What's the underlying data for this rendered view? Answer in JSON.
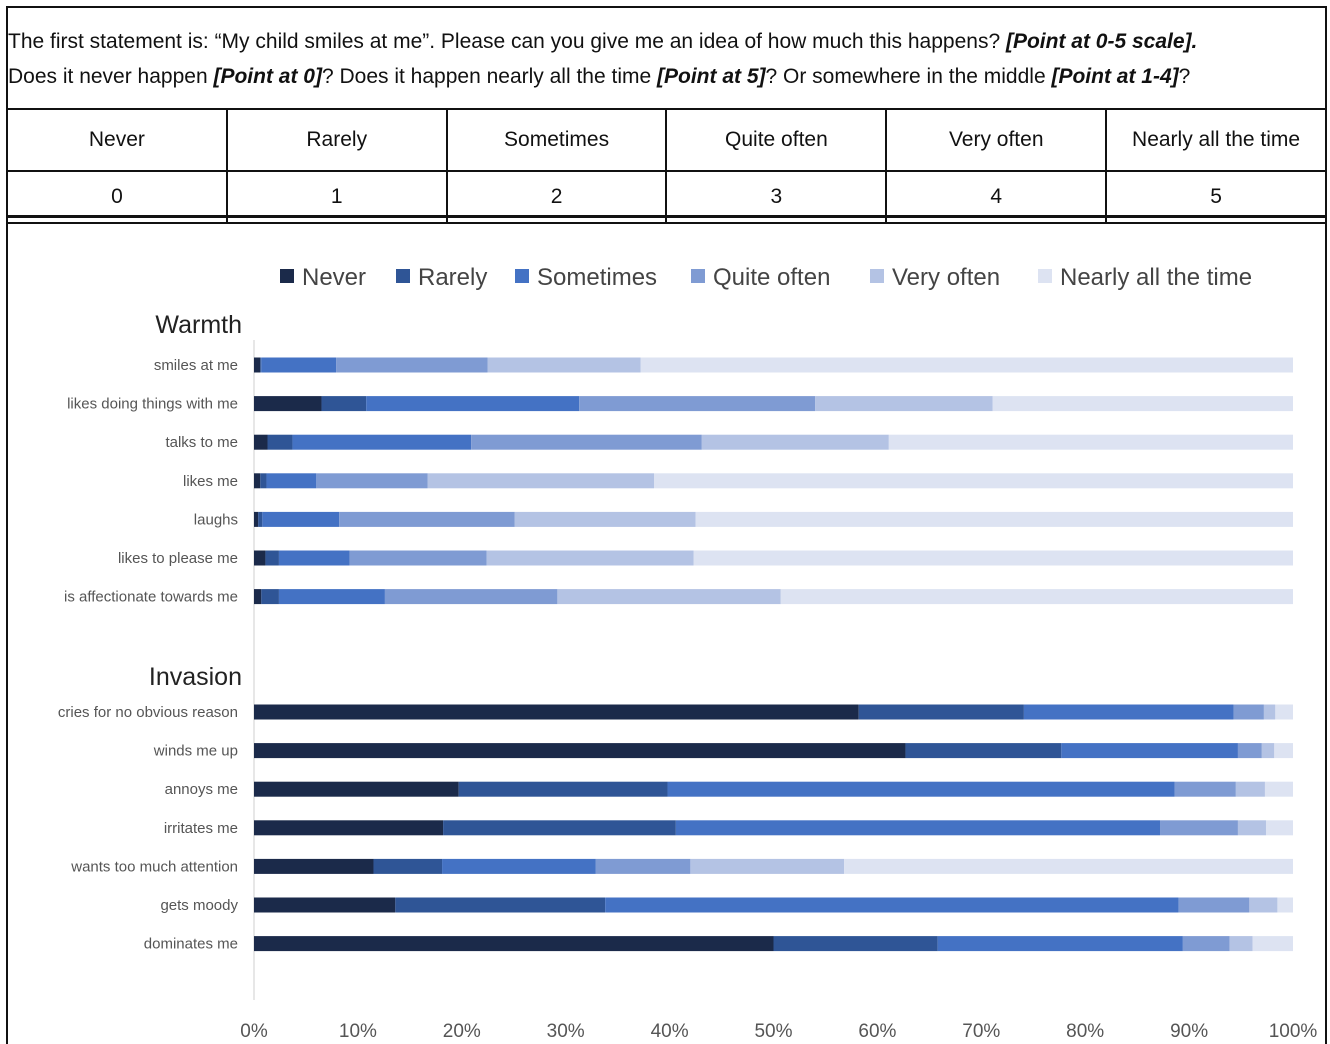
{
  "instruction": {
    "line1_a": "The first statement is: “My child smiles at me”. Please can you give me an idea of how much this happens? ",
    "line1_b": "[Point at 0-5 scale].",
    "line2_a": "Does it never happen ",
    "line2_b": "[Point at 0]",
    "line2_c": "? Does it happen nearly all the time ",
    "line2_d": "[Point at 5]",
    "line2_e": "? Or somewhere in the middle ",
    "line2_f": "[Point at 1-4]",
    "line2_g": "?"
  },
  "scale": {
    "labels": [
      "Never",
      "Rarely",
      "Sometimes",
      "Quite often",
      "Very often",
      "Nearly all the time"
    ],
    "numbers": [
      "0",
      "1",
      "2",
      "3",
      "4",
      "5"
    ]
  },
  "chart_data": {
    "type": "bar",
    "orientation": "horizontal",
    "stacked": true,
    "percent": true,
    "legend_position": "top",
    "xlim": [
      0,
      100
    ],
    "x_ticks": [
      "0%",
      "10%",
      "20%",
      "30%",
      "40%",
      "50%",
      "60%",
      "70%",
      "80%",
      "90%",
      "100%"
    ],
    "series_names": [
      "Never",
      "Rarely",
      "Sometimes",
      "Quite often",
      "Very often",
      "Nearly all the time"
    ],
    "colors": [
      "#1b2a4a",
      "#2f5596",
      "#4472c4",
      "#7f9bd3",
      "#b4c3e4",
      "#dde3f2"
    ],
    "groups": [
      {
        "title": "Warmth",
        "items": [
          {
            "label": "smiles at me",
            "values": [
              0.6,
              0.1,
              7.2,
              14.6,
              14.7,
              62.8
            ]
          },
          {
            "label": "likes doing things with me",
            "values": [
              6.5,
              4.3,
              20.5,
              22.7,
              17.1,
              28.9
            ]
          },
          {
            "label": "talks to me",
            "values": [
              1.3,
              2.4,
              17.2,
              22.2,
              18.0,
              38.9
            ]
          },
          {
            "label": "likes me",
            "values": [
              0.6,
              0.6,
              4.8,
              10.7,
              21.8,
              61.5
            ]
          },
          {
            "label": "laughs",
            "values": [
              0.4,
              0.4,
              7.4,
              16.9,
              17.4,
              57.5
            ]
          },
          {
            "label": "likes to please me",
            "values": [
              1.1,
              1.3,
              6.8,
              13.2,
              19.9,
              57.7
            ]
          },
          {
            "label": "is affectionate towards me",
            "values": [
              0.7,
              1.7,
              10.2,
              16.6,
              21.5,
              49.3
            ]
          }
        ]
      },
      {
        "title": "Invasion",
        "items": [
          {
            "label": "cries for no obvious reason",
            "values": [
              58.2,
              15.9,
              20.2,
              2.9,
              1.1,
              1.7
            ]
          },
          {
            "label": "winds me up",
            "values": [
              62.7,
              15.0,
              17.0,
              2.3,
              1.2,
              1.8
            ]
          },
          {
            "label": "annoys me",
            "values": [
              19.7,
              20.1,
              48.8,
              5.9,
              2.8,
              2.7
            ]
          },
          {
            "label": "irritates me",
            "values": [
              18.2,
              22.4,
              46.6,
              7.5,
              2.7,
              2.6
            ]
          },
          {
            "label": "wants too much attention",
            "values": [
              11.5,
              6.6,
              14.8,
              9.1,
              14.8,
              43.2
            ]
          },
          {
            "label": "gets moody",
            "values": [
              13.6,
              20.2,
              55.2,
              6.8,
              2.7,
              1.5
            ]
          },
          {
            "label": "dominates me",
            "values": [
              50.0,
              15.8,
              23.6,
              4.5,
              2.2,
              3.9
            ]
          }
        ]
      }
    ]
  }
}
